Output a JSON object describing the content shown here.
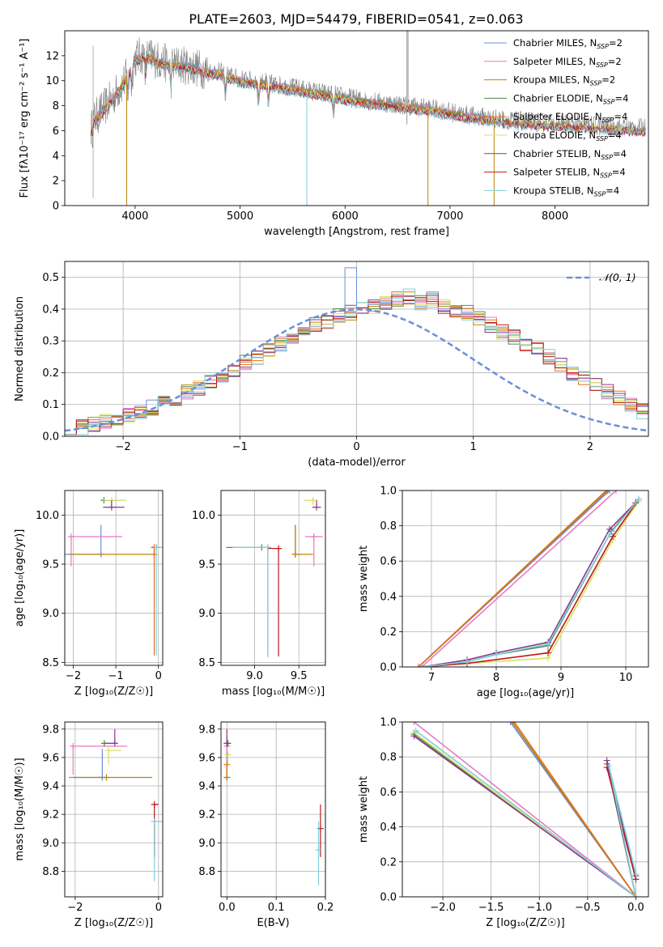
{
  "figure": {
    "title": "PLATE=2603, MJD=54479, FIBERID=0541, z=0.063"
  },
  "colors": {
    "Chabrier MILES": "#6a8fd8",
    "Salpeter MILES": "#e87ac0",
    "Kroupa MILES": "#b8860b",
    "Chabrier ELODIE": "#4e8a4e",
    "Salpeter ELODIE": "#e07020",
    "Kroupa ELODIE": "#d8e060",
    "Chabrier STELIB": "#8a3a8a",
    "Salpeter STELIB": "#c01818",
    "Kroupa STELIB": "#7fd0dc",
    "observed": "#808080",
    "gaussian": "#6a8fd8"
  },
  "chart_data": [
    {
      "type": "line",
      "panel": "spectrum",
      "title": "PLATE=2603, MJD=54479, FIBERID=0541, z=0.063",
      "xlabel": "wavelength [Angstrom, rest frame]",
      "ylabel": "Flux [fλ10⁻¹⁷ erg cm⁻² s⁻¹ A⁻¹]",
      "xlim": [
        3330,
        8890
      ],
      "ylim": [
        0,
        14
      ],
      "xticks": [
        4000,
        5000,
        6000,
        7000,
        8000
      ],
      "yticks": [
        0,
        2,
        4,
        6,
        8,
        10,
        12
      ],
      "grid": false,
      "legend_position": "top-right",
      "legend": [
        {
          "label": "Chabrier MILES, N",
          "sub": "SSP",
          "suffix": "=2",
          "color": "#6a8fd8"
        },
        {
          "label": "Salpeter MILES, N",
          "sub": "SSP",
          "suffix": "=2",
          "color": "#e87ac0"
        },
        {
          "label": "Kroupa MILES, N",
          "sub": "SSP",
          "suffix": "=2",
          "color": "#b8860b"
        },
        {
          "label": "Chabrier ELODIE, N",
          "sub": "SSP",
          "suffix": "=4",
          "color": "#4e8a4e"
        },
        {
          "label": "Salpeter ELODIE, N",
          "sub": "SSP",
          "suffix": "=4",
          "color": "#e07020"
        },
        {
          "label": "Kroupa ELODIE, N",
          "sub": "SSP",
          "suffix": "=4",
          "color": "#d8e060"
        },
        {
          "label": "Chabrier STELIB, N",
          "sub": "SSP",
          "suffix": "=4",
          "color": "#8a3a8a"
        },
        {
          "label": "Salpeter STELIB, N",
          "sub": "SSP",
          "suffix": "=4",
          "color": "#c01818"
        },
        {
          "label": "Kroupa STELIB, N",
          "sub": "SSP",
          "suffix": "=4",
          "color": "#7fd0dc"
        }
      ],
      "continuum": {
        "x": [
          3600,
          3700,
          3800,
          3900,
          4000,
          4100,
          4200,
          4300,
          4400,
          4500,
          4600,
          4700,
          4800,
          4900,
          5000,
          5200,
          5400,
          5600,
          5800,
          6000,
          6200,
          6400,
          6600,
          6800,
          7000,
          7200,
          7400,
          7600,
          7800,
          8000,
          8200,
          8400,
          8600,
          8800
        ],
        "y": [
          6.8,
          7.8,
          8.8,
          10.0,
          11.8,
          12.1,
          11.7,
          11.4,
          11.3,
          11.2,
          11.0,
          10.8,
          10.7,
          10.4,
          10.1,
          9.9,
          9.6,
          9.3,
          9.0,
          8.7,
          8.4,
          8.2,
          8.0,
          7.8,
          7.5,
          7.2,
          7.0,
          6.8,
          6.7,
          6.6,
          6.5,
          6.4,
          6.3,
          6.2
        ]
      },
      "absorption_lines": [
        3933,
        3968,
        4102,
        4340,
        4861,
        5175,
        5270,
        5890
      ],
      "dropouts": [
        {
          "x": 3920,
          "y": 0,
          "series": "Kroupa MILES"
        },
        {
          "x": 5636,
          "y": 0,
          "series": "Kroupa STELIB"
        },
        {
          "x": 6790,
          "y": 0,
          "series": "Kroupa MILES"
        },
        {
          "x": 7420,
          "y": 0,
          "series": "Kroupa MILES"
        }
      ]
    },
    {
      "type": "line",
      "panel": "residual-distribution",
      "xlabel": "(data-model)/error",
      "ylabel": "Normed distribution",
      "xlim": [
        -2.5,
        2.5
      ],
      "ylim": [
        0,
        0.55
      ],
      "xticks": [
        -2,
        -1,
        0,
        1,
        2
      ],
      "yticks": [
        0.0,
        0.1,
        0.2,
        0.3,
        0.4,
        0.5
      ],
      "grid": true,
      "legend_position": "top-right",
      "legend": [
        {
          "label": "𝒩(0, 1)",
          "color": "#6a8fd8",
          "style": "dashed"
        }
      ],
      "bin_edges_start": -2.5,
      "bin_width": 0.1,
      "reference_histogram": [
        0.03,
        0.03,
        0.04,
        0.05,
        0.06,
        0.07,
        0.08,
        0.09,
        0.11,
        0.12,
        0.14,
        0.15,
        0.17,
        0.19,
        0.21,
        0.23,
        0.25,
        0.27,
        0.29,
        0.31,
        0.33,
        0.35,
        0.36,
        0.38,
        0.39,
        0.4,
        0.41,
        0.42,
        0.43,
        0.44,
        0.42,
        0.43,
        0.41,
        0.4,
        0.39,
        0.37,
        0.35,
        0.33,
        0.31,
        0.29,
        0.27,
        0.25,
        0.23,
        0.2,
        0.18,
        0.16,
        0.14,
        0.12,
        0.1,
        0.08
      ]
    },
    {
      "type": "scatter",
      "panel": "age-vs-Z",
      "xlabel": "Z [log₁₀(Z/Z☉)]",
      "ylabel": "age  [log₁₀(age/yr)]",
      "xlim": [
        -2.2,
        0.1
      ],
      "ylim": [
        8.47,
        10.25
      ],
      "xticks": [
        -2,
        -1,
        0
      ],
      "yticks": [
        8.5,
        9.0,
        9.5,
        10.0
      ],
      "grid": true,
      "points": [
        {
          "series": "Chabrier MILES",
          "x": -1.35,
          "y": 9.6,
          "xerr": [
            0.9,
            0
          ],
          "yerr": [
            0,
            0.3
          ]
        },
        {
          "series": "Salpeter MILES",
          "x": -2.05,
          "y": 9.78,
          "xerr": [
            0,
            1.2
          ],
          "yerr": [
            0.3,
            0
          ]
        },
        {
          "series": "Kroupa MILES",
          "x": -0.1,
          "y": 9.6,
          "xerr": [
            2.0,
            0
          ],
          "yerr": [
            0,
            0.05
          ]
        },
        {
          "series": "Chabrier ELODIE",
          "x": -1.28,
          "y": 10.15,
          "xerr": [
            0.05,
            0.3
          ],
          "yerr": [
            0,
            0
          ]
        },
        {
          "series": "Salpeter ELODIE",
          "x": -0.1,
          "y": 9.67,
          "xerr": [
            0,
            0.15
          ],
          "yerr": [
            1.1,
            0
          ]
        },
        {
          "series": "Kroupa ELODIE",
          "x": -1.1,
          "y": 10.15,
          "xerr": [
            0.2,
            0.35
          ],
          "yerr": [
            0.05,
            0
          ]
        },
        {
          "series": "Chabrier STELIB",
          "x": -1.1,
          "y": 10.08,
          "xerr": [
            0.2,
            0.3
          ],
          "yerr": [
            0,
            0.07
          ]
        },
        {
          "series": "Salpeter STELIB",
          "x": -0.05,
          "y": 9.67,
          "xerr": [
            0.1,
            0.05
          ],
          "yerr": [
            0,
            0
          ]
        },
        {
          "series": "Kroupa STELIB",
          "x": -0.05,
          "y": 9.67,
          "xerr": [
            0,
            0.2
          ],
          "yerr": [
            1.1,
            0
          ]
        }
      ]
    },
    {
      "type": "scatter",
      "panel": "age-vs-mass",
      "xlabel": "mass [log₁₀(M/M☉)]",
      "ylabel": "",
      "xlim": [
        8.62,
        9.8
      ],
      "ylim": [
        8.47,
        10.25
      ],
      "xticks": [
        9.0,
        9.5
      ],
      "yticks": [
        8.5,
        9.0,
        9.5,
        10.0
      ],
      "grid": true,
      "points": [
        {
          "series": "Chabrier MILES",
          "x": 9.46,
          "y": 9.6,
          "xerr": [
            0,
            0
          ],
          "yerr": [
            0,
            0.3
          ]
        },
        {
          "series": "Salpeter MILES",
          "x": 9.67,
          "y": 9.78,
          "xerr": [
            0.1,
            0.1
          ],
          "yerr": [
            0.3,
            0
          ]
        },
        {
          "series": "Kroupa MILES",
          "x": 9.46,
          "y": 9.6,
          "xerr": [
            0,
            0.2
          ],
          "yerr": [
            0,
            0.3
          ]
        },
        {
          "series": "Chabrier ELODIE",
          "x": 9.08,
          "y": 9.67,
          "xerr": [
            0.4,
            0
          ],
          "yerr": [
            0,
            0
          ]
        },
        {
          "series": "Salpeter ELODIE",
          "x": 9.15,
          "y": 9.67,
          "xerr": [
            0,
            0
          ],
          "yerr": [
            1.1,
            0
          ]
        },
        {
          "series": "Kroupa ELODIE",
          "x": 9.66,
          "y": 10.15,
          "xerr": [
            0.1,
            0.05
          ],
          "yerr": [
            0.05,
            0
          ]
        },
        {
          "series": "Chabrier STELIB",
          "x": 9.7,
          "y": 10.08,
          "xerr": [
            0.05,
            0.05
          ],
          "yerr": [
            0,
            0.07
          ]
        },
        {
          "series": "Salpeter STELIB",
          "x": 9.27,
          "y": 9.66,
          "xerr": [
            0.12,
            0
          ],
          "yerr": [
            1.1,
            0
          ]
        },
        {
          "series": "Kroupa STELIB",
          "x": 9.15,
          "y": 9.67,
          "xerr": [
            0.4,
            0
          ],
          "yerr": [
            1.12,
            0
          ]
        }
      ]
    },
    {
      "type": "line",
      "panel": "mass-weight-vs-age",
      "xlabel": "age  [log₁₀(age/yr)]",
      "ylabel": "mass weight",
      "xlim": [
        6.55,
        10.35
      ],
      "ylim": [
        0,
        1
      ],
      "xticks": [
        7,
        8,
        9,
        10
      ],
      "yticks": [
        0.0,
        0.2,
        0.4,
        0.6,
        0.8,
        1.0
      ],
      "grid": true,
      "series": [
        {
          "name": "Chabrier MILES",
          "x": [
            6.8,
            9.75
          ],
          "y": [
            0.0,
            1.0
          ]
        },
        {
          "name": "Salpeter MILES",
          "x": [
            6.85,
            9.85
          ],
          "y": [
            0.0,
            1.0
          ]
        },
        {
          "name": "Kroupa MILES",
          "x": [
            6.8,
            9.7
          ],
          "y": [
            0.0,
            1.0
          ]
        },
        {
          "name": "Chabrier ELODIE",
          "x": [
            6.85,
            7.55,
            8.0,
            8.8,
            9.78,
            10.2
          ],
          "y": [
            0.0,
            0.03,
            0.07,
            0.12,
            0.77,
            0.95
          ]
        },
        {
          "name": "Salpeter ELODIE",
          "x": [
            6.8,
            9.72
          ],
          "y": [
            0.0,
            1.0
          ]
        },
        {
          "name": "Kroupa ELODIE",
          "x": [
            6.85,
            7.55,
            8.8,
            9.8,
            10.2
          ],
          "y": [
            0.0,
            0.02,
            0.05,
            0.72,
            0.94
          ]
        },
        {
          "name": "Chabrier STELIB",
          "x": [
            6.85,
            7.55,
            8.0,
            8.8,
            9.75,
            10.15
          ],
          "y": [
            0.0,
            0.04,
            0.08,
            0.14,
            0.78,
            0.93
          ]
        },
        {
          "name": "Salpeter STELIB",
          "x": [
            6.85,
            7.55,
            8.8,
            9.8,
            10.2
          ],
          "y": [
            0.0,
            0.02,
            0.08,
            0.74,
            0.95
          ]
        },
        {
          "name": "Kroupa STELIB",
          "x": [
            6.85,
            7.55,
            8.0,
            8.8,
            9.75,
            10.2
          ],
          "y": [
            0.0,
            0.03,
            0.07,
            0.13,
            0.75,
            0.95
          ]
        }
      ]
    },
    {
      "type": "scatter",
      "panel": "mass-vs-Z",
      "xlabel": "Z [log₁₀(Z/Z☉)]",
      "ylabel": "mass [log₁₀(M/M☉)]",
      "xlim": [
        -2.25,
        0.1
      ],
      "ylim": [
        8.62,
        9.85
      ],
      "xticks": [
        -2,
        0
      ],
      "yticks": [
        8.8,
        9.0,
        9.2,
        9.4,
        9.6,
        9.8
      ],
      "grid": true,
      "points": [
        {
          "series": "Chabrier MILES",
          "x": -1.35,
          "y": 9.46,
          "xerr": [
            0.8,
            0
          ],
          "yerr": [
            0,
            0.2
          ]
        },
        {
          "series": "Salpeter MILES",
          "x": -2.05,
          "y": 9.68,
          "xerr": [
            0,
            1.3
          ],
          "yerr": [
            0.2,
            0
          ]
        },
        {
          "series": "Kroupa MILES",
          "x": -1.25,
          "y": 9.46,
          "xerr": [
            0.8,
            1.1
          ],
          "yerr": [
            0,
            0
          ]
        },
        {
          "series": "Chabrier ELODIE",
          "x": -1.3,
          "y": 9.7,
          "xerr": [
            0.05,
            0.3
          ],
          "yerr": [
            0.02,
            0
          ]
        },
        {
          "series": "Salpeter ELODIE",
          "x": -0.1,
          "y": 9.15,
          "xerr": [
            0,
            0
          ],
          "yerr": [
            0.25,
            0
          ]
        },
        {
          "series": "Kroupa ELODIE",
          "x": -1.2,
          "y": 9.65,
          "xerr": [
            0.05,
            0.3
          ],
          "yerr": [
            0.1,
            0
          ]
        },
        {
          "series": "Chabrier STELIB",
          "x": -1.05,
          "y": 9.7,
          "xerr": [
            0.25,
            0
          ],
          "yerr": [
            0,
            0.1
          ]
        },
        {
          "series": "Salpeter STELIB",
          "x": -0.1,
          "y": 9.27,
          "xerr": [
            0,
            0.1
          ],
          "yerr": [
            0.37,
            0
          ]
        },
        {
          "series": "Kroupa STELIB",
          "x": -0.1,
          "y": 9.15,
          "xerr": [
            0,
            0.2
          ],
          "yerr": [
            0.42,
            0
          ]
        }
      ]
    },
    {
      "type": "scatter",
      "panel": "mass-vs-ebv",
      "xlabel": "E(B-V)",
      "ylabel": "",
      "xlim": [
        -0.012,
        0.2
      ],
      "ylim": [
        8.62,
        9.85
      ],
      "xticks": [
        0.0,
        0.1,
        0.2
      ],
      "yticks": [
        8.8,
        9.0,
        9.2,
        9.4,
        9.6,
        9.8
      ],
      "grid": true,
      "points": [
        {
          "series": "Chabrier MILES",
          "x": 0.0,
          "y": 9.46,
          "yerr": [
            0,
            0.2
          ]
        },
        {
          "series": "Salpeter MILES",
          "x": 0.0,
          "y": 9.68,
          "yerr": [
            0.1,
            0.05
          ]
        },
        {
          "series": "Kroupa MILES",
          "x": 0.0,
          "y": 9.46,
          "yerr": [
            0,
            0.1
          ]
        },
        {
          "series": "Chabrier ELODIE",
          "x": 0.002,
          "y": 9.7,
          "yerr": [
            0.02,
            0
          ]
        },
        {
          "series": "Salpeter ELODIE",
          "x": 0.0,
          "y": 9.55,
          "yerr": [
            0.1,
            0
          ]
        },
        {
          "series": "Kroupa ELODIE",
          "x": 0.002,
          "y": 9.62,
          "yerr": [
            0.07,
            0
          ]
        },
        {
          "series": "Chabrier STELIB",
          "x": 0.0,
          "y": 9.7,
          "yerr": [
            0,
            0.1
          ]
        },
        {
          "series": "Salpeter STELIB",
          "x": 0.19,
          "y": 9.1,
          "yerr": [
            0.2,
            0.17
          ]
        },
        {
          "series": "Kroupa STELIB",
          "x": 0.186,
          "y": 8.95,
          "yerr": [
            0.25,
            0.2
          ]
        }
      ]
    },
    {
      "type": "line",
      "panel": "mass-weight-vs-Z",
      "xlabel": "Z [log₁₀(Z/Z☉)]",
      "ylabel": "mass weight",
      "xlim": [
        -2.42,
        0.13
      ],
      "ylim": [
        0,
        1
      ],
      "xticks": [
        -2.0,
        -1.5,
        -1.0,
        -0.5,
        0.0
      ],
      "yticks": [
        0.0,
        0.2,
        0.4,
        0.6,
        0.8,
        1.0
      ],
      "grid": true,
      "series": [
        {
          "name": "Chabrier MILES",
          "x": [
            -1.3,
            0.0
          ],
          "y": [
            1.0,
            0.0
          ]
        },
        {
          "name": "Salpeter MILES",
          "x": [
            -2.3,
            0.0
          ],
          "y": [
            1.0,
            0.0
          ]
        },
        {
          "name": "Kroupa MILES",
          "x": [
            -1.28,
            0.0
          ],
          "y": [
            1.0,
            0.0
          ]
        },
        {
          "name": "Chabrier ELODIE",
          "x": [
            -2.3,
            0.0,
            -0.3,
            0.0
          ],
          "y": [
            0.93,
            0.0,
            0.76,
            0.1
          ]
        },
        {
          "name": "Salpeter ELODIE",
          "x": [
            -1.26,
            0.0
          ],
          "y": [
            1.0,
            0.0
          ]
        },
        {
          "name": "Kroupa ELODIE",
          "x": [
            -2.3,
            0.0
          ],
          "y": [
            0.94,
            0.0
          ]
        },
        {
          "name": "Chabrier STELIB",
          "x": [
            -2.3,
            0.0,
            -0.3,
            0.0
          ],
          "y": [
            0.92,
            0.0,
            0.78,
            0.12
          ]
        },
        {
          "name": "Salpeter STELIB",
          "x": [
            -0.3,
            0.0
          ],
          "y": [
            0.74,
            0.1
          ]
        },
        {
          "name": "Kroupa STELIB",
          "x": [
            -2.28,
            0.0,
            -0.28,
            0.0
          ],
          "y": [
            0.95,
            0.0,
            0.75,
            0.13
          ]
        }
      ]
    }
  ]
}
